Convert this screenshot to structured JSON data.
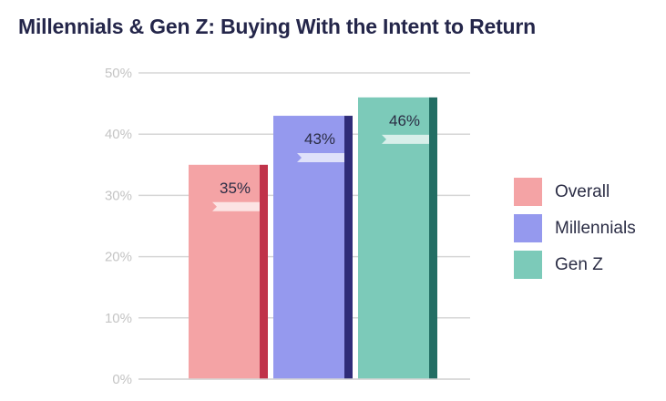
{
  "title": "Millennials & Gen Z: Buying With the Intent to Return",
  "chart_data": {
    "type": "bar",
    "title": "Millennials & Gen Z: Buying With the Intent to Return",
    "xlabel": "",
    "ylabel": "",
    "ylim": [
      0,
      50
    ],
    "yticks": [
      "0%",
      "10%",
      "20%",
      "30%",
      "40%",
      "50%"
    ],
    "grid": true,
    "legend_position": "right",
    "series": [
      {
        "name": "Overall",
        "values": [
          35
        ],
        "label": "35%",
        "color": "#f4a3a5",
        "edge_color": "#c0334a"
      },
      {
        "name": "Millennials",
        "values": [
          43
        ],
        "label": "43%",
        "color": "#9599ee",
        "edge_color": "#2f2c78"
      },
      {
        "name": "Gen Z",
        "values": [
          46
        ],
        "label": "46%",
        "color": "#7ccab9",
        "edge_color": "#236e64"
      }
    ]
  }
}
